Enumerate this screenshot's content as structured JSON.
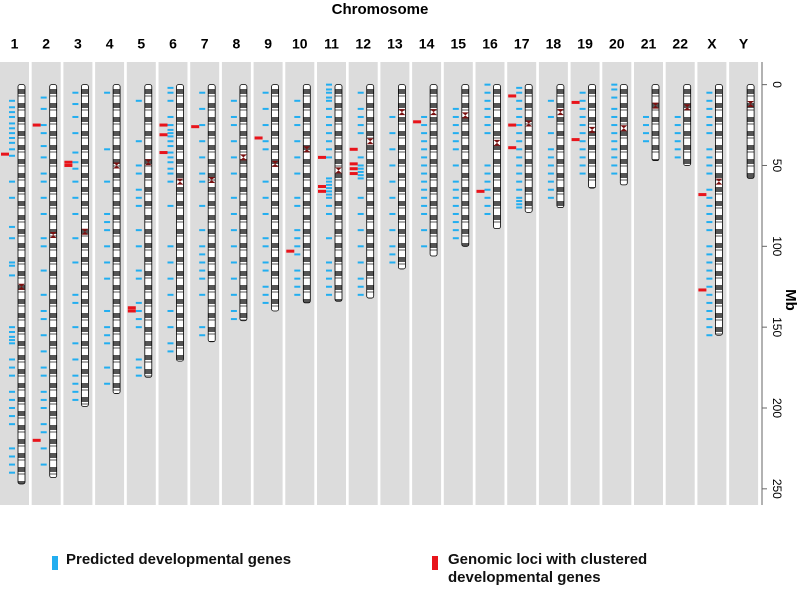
{
  "chart_data": {
    "type": "ideogram",
    "title": "Chromosome",
    "y_label": "Mb",
    "ylim": [
      -14,
      260
    ],
    "yticks": [
      0,
      50,
      100,
      150,
      200,
      250
    ],
    "chromosomes": [
      {
        "name": "1",
        "length": 247,
        "centromere": 125
      },
      {
        "name": "2",
        "length": 243,
        "centromere": 93
      },
      {
        "name": "3",
        "length": 199,
        "centromere": 91
      },
      {
        "name": "4",
        "length": 191,
        "centromere": 50
      },
      {
        "name": "5",
        "length": 181,
        "centromere": 48
      },
      {
        "name": "6",
        "length": 171,
        "centromere": 60
      },
      {
        "name": "7",
        "length": 159,
        "centromere": 59
      },
      {
        "name": "8",
        "length": 146,
        "centromere": 45
      },
      {
        "name": "9",
        "length": 140,
        "centromere": 49
      },
      {
        "name": "10",
        "length": 135,
        "centromere": 40
      },
      {
        "name": "11",
        "length": 134,
        "centromere": 53
      },
      {
        "name": "12",
        "length": 132,
        "centromere": 35
      },
      {
        "name": "13",
        "length": 114,
        "centromere": 17
      },
      {
        "name": "14",
        "length": 106,
        "centromere": 17
      },
      {
        "name": "15",
        "length": 100,
        "centromere": 19
      },
      {
        "name": "16",
        "length": 89,
        "centromere": 36
      },
      {
        "name": "17",
        "length": 79,
        "centromere": 24
      },
      {
        "name": "18",
        "length": 76,
        "centromere": 17
      },
      {
        "name": "19",
        "length": 64,
        "centromere": 28
      },
      {
        "name": "20",
        "length": 62,
        "centromere": 27
      },
      {
        "name": "21",
        "length": 47,
        "centromere": 13
      },
      {
        "name": "22",
        "length": 50,
        "centromere": 14
      },
      {
        "name": "X",
        "length": 155,
        "centromere": 60
      },
      {
        "name": "Y",
        "length": 58,
        "centromere": 12
      }
    ],
    "series": [
      {
        "name": "Predicted developmental genes",
        "color": "#22aef0",
        "values": [
          [
            10,
            14,
            17,
            20,
            24,
            27,
            30,
            33,
            36,
            40,
            44,
            60,
            70,
            88,
            95,
            110,
            112,
            118,
            150,
            153,
            156,
            158,
            160,
            170,
            175,
            180,
            190,
            195,
            200,
            205,
            210,
            225,
            230,
            235,
            240
          ],
          [
            8,
            15,
            25,
            30,
            38,
            45,
            55,
            60,
            70,
            80,
            95,
            100,
            115,
            130,
            140,
            145,
            155,
            165,
            175,
            180,
            190,
            195,
            200,
            210,
            215,
            225,
            235
          ],
          [
            5,
            12,
            20,
            30,
            42,
            48,
            52,
            60,
            70,
            80,
            95,
            110,
            130,
            135,
            150,
            160,
            170,
            180,
            185,
            190,
            195
          ],
          [
            5,
            40,
            60,
            80,
            85,
            90,
            100,
            110,
            120,
            140,
            150,
            155,
            160,
            175,
            185
          ],
          [
            10,
            35,
            50,
            55,
            65,
            70,
            75,
            90,
            100,
            115,
            120,
            135,
            140,
            145,
            150,
            170,
            175,
            180
          ],
          [
            2,
            5,
            10,
            20,
            25,
            28,
            30,
            32,
            35,
            38,
            42,
            45,
            48,
            52,
            55,
            60,
            75,
            100,
            110,
            120,
            130,
            140,
            150,
            160,
            165
          ],
          [
            5,
            15,
            25,
            35,
            45,
            55,
            60,
            75,
            90,
            100,
            105,
            110,
            115,
            120,
            130,
            150,
            155
          ],
          [
            10,
            20,
            25,
            35,
            45,
            55,
            70,
            80,
            90,
            100,
            110,
            120,
            130,
            140,
            145
          ],
          [
            5,
            15,
            25,
            35,
            40,
            60,
            70,
            80,
            95,
            100,
            110,
            115,
            125,
            130,
            135
          ],
          [
            10,
            20,
            25,
            35,
            45,
            55,
            70,
            75,
            90,
            95,
            100,
            105,
            115,
            120,
            125,
            130
          ],
          [
            0,
            3,
            5,
            8,
            10,
            15,
            20,
            25,
            30,
            35,
            40,
            45,
            58,
            60,
            62,
            64,
            66,
            68,
            70,
            75,
            80,
            95,
            110,
            115,
            120,
            125,
            130
          ],
          [
            5,
            15,
            20,
            25,
            30,
            45,
            50,
            52,
            54,
            56,
            58,
            70,
            80,
            90,
            100,
            110,
            120,
            125,
            130
          ],
          [
            20,
            30,
            40,
            50,
            60,
            70,
            80,
            90,
            100,
            105,
            110
          ],
          [
            20,
            25,
            30,
            35,
            40,
            45,
            50,
            55,
            60,
            65,
            70,
            75,
            80,
            90,
            100
          ],
          [
            15,
            20,
            25,
            30,
            35,
            40,
            50,
            60,
            65,
            70,
            75,
            80,
            85,
            90,
            95
          ],
          [
            0,
            5,
            10,
            15,
            20,
            25,
            30,
            50,
            55,
            60,
            65,
            70,
            75,
            80
          ],
          [
            2,
            5,
            10,
            15,
            20,
            25,
            30,
            35,
            40,
            45,
            50,
            55,
            60,
            65,
            70,
            72,
            74,
            76
          ],
          [
            10,
            20,
            30,
            40,
            45,
            50,
            55,
            60,
            65,
            70
          ],
          [
            5,
            10,
            15,
            20,
            25,
            30,
            35,
            40,
            45,
            50,
            55
          ],
          [
            0,
            3,
            8,
            15,
            20,
            25,
            30,
            35,
            40,
            45,
            50,
            55
          ],
          [
            20,
            25,
            30,
            35
          ],
          [
            20,
            25,
            30,
            35,
            40,
            45
          ],
          [
            5,
            10,
            15,
            20,
            25,
            30,
            40,
            45,
            50,
            55,
            65,
            70,
            75,
            80,
            85,
            90,
            100,
            105,
            110,
            115,
            120,
            125,
            130,
            135,
            140,
            145,
            150,
            155
          ],
          []
        ]
      },
      {
        "name": "Genomic loci with clustered developmental genes",
        "color": "#e8141b",
        "values": [
          [
            43
          ],
          [
            25,
            220
          ],
          [
            48,
            50
          ],
          [],
          [
            138,
            140
          ],
          [
            25,
            31,
            42
          ],
          [
            26
          ],
          [],
          [
            33
          ],
          [
            103
          ],
          [
            45,
            63,
            66
          ],
          [
            40,
            49,
            52,
            55
          ],
          [],
          [
            23
          ],
          [],
          [
            66
          ],
          [
            7,
            25,
            39
          ],
          [],
          [
            11,
            34
          ],
          [],
          [],
          [],
          [
            68,
            127
          ],
          []
        ]
      }
    ]
  }
}
